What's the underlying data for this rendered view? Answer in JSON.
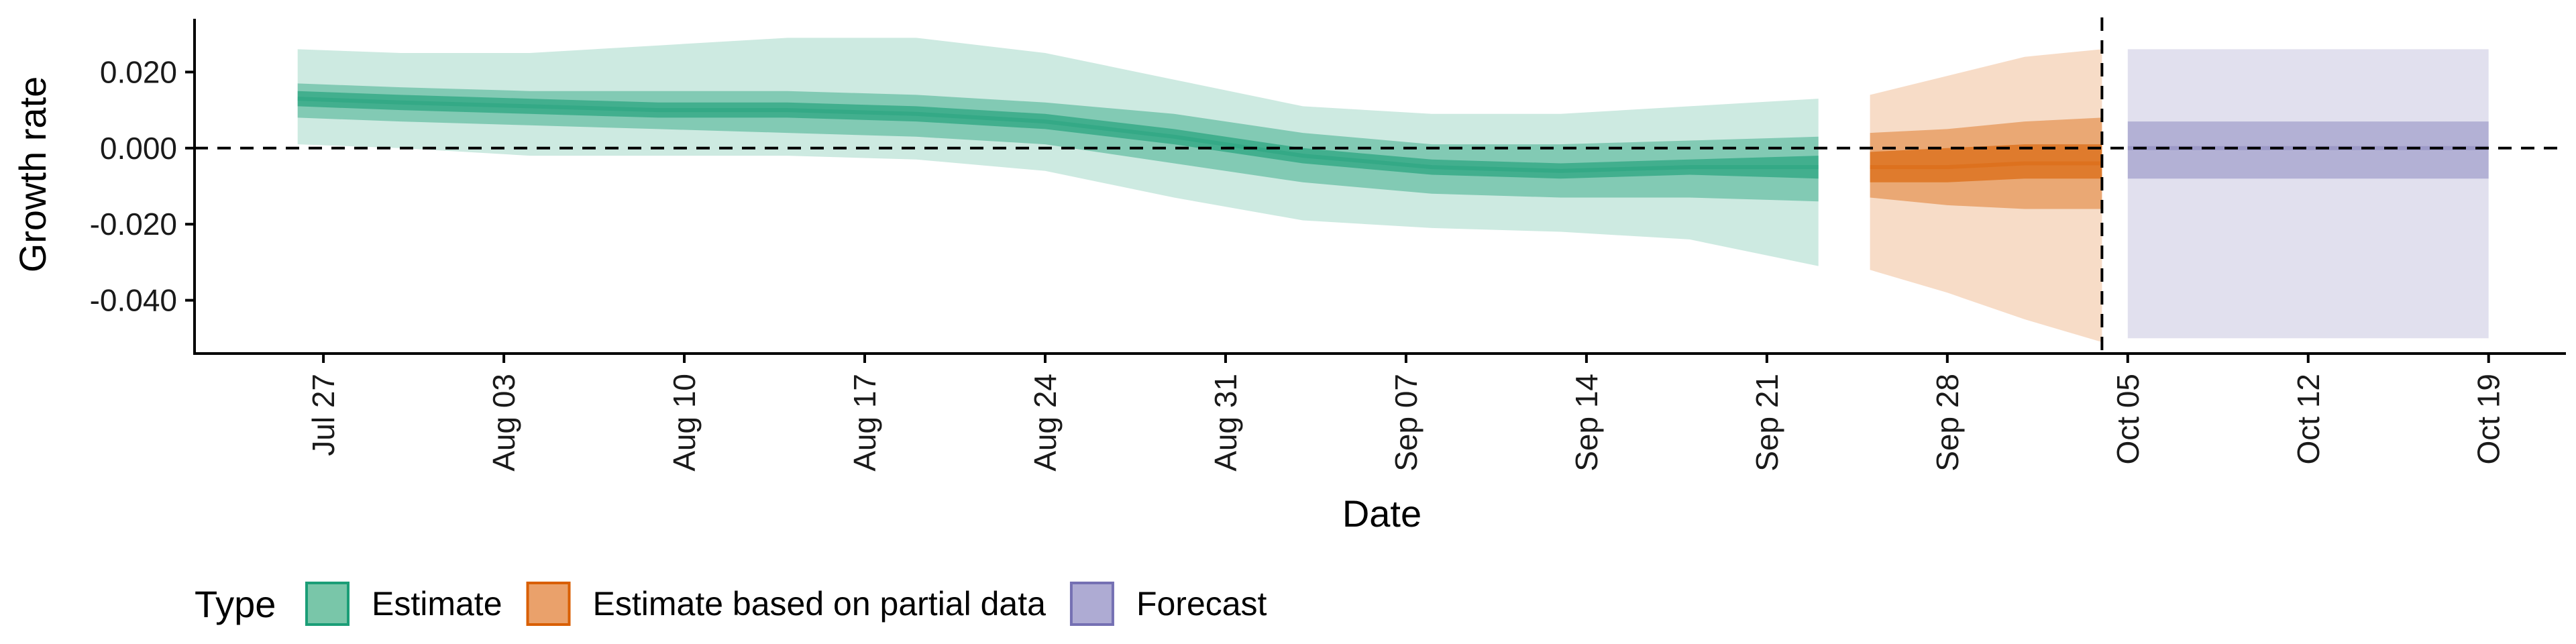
{
  "chart_data": {
    "type": "area",
    "xlabel": "Date",
    "ylabel": "Growth rate",
    "x_ticks": [
      "Jul 27",
      "Aug 03",
      "Aug 10",
      "Aug 17",
      "Aug 24",
      "Aug 31",
      "Sep 07",
      "Sep 14",
      "Sep 21",
      "Sep 28",
      "Oct 05",
      "Oct 12",
      "Oct 19"
    ],
    "y_ticks": [
      "0.020",
      "0.000",
      "-0.020",
      "-0.040"
    ],
    "ylim": [
      -0.054,
      0.034
    ],
    "xlim": [
      "2021-07-22",
      "2021-10-22"
    ],
    "reference_lines": [
      {
        "orientation": "horizontal",
        "value": 0.0,
        "style": "dashed"
      },
      {
        "orientation": "vertical",
        "value": "2021-10-04",
        "style": "dashed"
      }
    ],
    "legend": {
      "title": "Type",
      "placement": "bottom-left",
      "items": [
        {
          "label": "Estimate",
          "fill": "#79c6a9",
          "stroke": "#1b9e77"
        },
        {
          "label": "Estimate based on partial data",
          "fill": "#eaa16b",
          "stroke": "#d95f02"
        },
        {
          "label": "Forecast",
          "fill": "#aeabd3",
          "stroke": "#7570b3"
        }
      ]
    },
    "series": [
      {
        "name": "Estimate",
        "color": "#1b9e77",
        "x": [
          "2021-07-26",
          "2021-07-30",
          "2021-08-04",
          "2021-08-09",
          "2021-08-14",
          "2021-08-19",
          "2021-08-24",
          "2021-08-29",
          "2021-09-03",
          "2021-09-08",
          "2021-09-13",
          "2021-09-18",
          "2021-09-23"
        ],
        "median": [
          0.013,
          0.012,
          0.011,
          0.01,
          0.01,
          0.009,
          0.007,
          0.003,
          -0.002,
          -0.005,
          -0.006,
          -0.005,
          -0.005
        ],
        "inner_lower": [
          0.011,
          0.01,
          0.009,
          0.008,
          0.008,
          0.007,
          0.005,
          0.001,
          -0.004,
          -0.007,
          -0.008,
          -0.007,
          -0.008
        ],
        "inner_upper": [
          0.015,
          0.014,
          0.013,
          0.012,
          0.012,
          0.011,
          0.009,
          0.005,
          0.0,
          -0.003,
          -0.004,
          -0.003,
          -0.002
        ],
        "mid_lower": [
          0.008,
          0.007,
          0.006,
          0.005,
          0.004,
          0.003,
          0.001,
          -0.004,
          -0.009,
          -0.012,
          -0.013,
          -0.013,
          -0.014
        ],
        "mid_upper": [
          0.017,
          0.016,
          0.015,
          0.015,
          0.015,
          0.014,
          0.012,
          0.009,
          0.004,
          0.001,
          0.001,
          0.002,
          0.003
        ],
        "outer_lower": [
          0.001,
          0.0,
          -0.002,
          -0.002,
          -0.002,
          -0.003,
          -0.006,
          -0.013,
          -0.019,
          -0.021,
          -0.022,
          -0.024,
          -0.031
        ],
        "outer_upper": [
          0.026,
          0.025,
          0.025,
          0.027,
          0.029,
          0.029,
          0.025,
          0.018,
          0.011,
          0.009,
          0.009,
          0.011,
          0.013
        ]
      },
      {
        "name": "Estimate based on partial data",
        "color": "#d95f02",
        "x": [
          "2021-09-25",
          "2021-09-28",
          "2021-10-01",
          "2021-10-04"
        ],
        "median": [
          -0.005,
          -0.005,
          -0.004,
          -0.004
        ],
        "inner_lower": [
          -0.009,
          -0.009,
          -0.008,
          -0.008
        ],
        "inner_upper": [
          -0.001,
          0.0,
          0.001,
          0.001
        ],
        "mid_lower": [
          -0.013,
          -0.015,
          -0.016,
          -0.016
        ],
        "mid_upper": [
          0.004,
          0.005,
          0.007,
          0.008
        ],
        "outer_lower": [
          -0.032,
          -0.038,
          -0.045,
          -0.051
        ],
        "outer_upper": [
          0.014,
          0.019,
          0.024,
          0.026
        ]
      },
      {
        "name": "Forecast",
        "color": "#7570b3",
        "x": [
          "2021-10-05",
          "2021-10-19"
        ],
        "median": [
          0.0,
          0.0
        ],
        "mid_lower": [
          -0.008,
          -0.008
        ],
        "mid_upper": [
          0.007,
          0.007
        ],
        "outer_lower": [
          -0.05,
          -0.05
        ],
        "outer_upper": [
          0.026,
          0.026
        ]
      }
    ]
  }
}
